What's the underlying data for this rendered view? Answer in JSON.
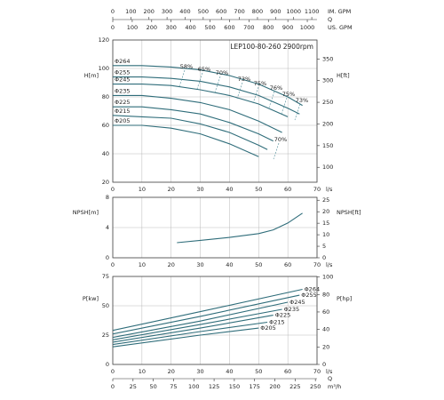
{
  "chart_data": [
    {
      "type": "line",
      "title": "LEP100-80-260 2900rpm",
      "ylabel": "H[m]",
      "y2label": "H[ft]",
      "xlabel": "l/s",
      "xlim": [
        0,
        70
      ],
      "xticks": [
        0,
        10,
        20,
        30,
        40,
        50,
        60,
        70
      ],
      "ylim": [
        20,
        120
      ],
      "yticks": [
        20,
        40,
        60,
        80,
        100,
        120
      ],
      "y2lim": [
        65.6,
        393.7
      ],
      "y2ticks": [
        100,
        150,
        200,
        250,
        300,
        350
      ],
      "grid": true,
      "top_axis_title": "Q",
      "top_axes": [
        {
          "label": "IM. GPM",
          "xlim": [
            0,
            1129
          ],
          "xticks": [
            0,
            100,
            200,
            300,
            400,
            500,
            600,
            700,
            800,
            900,
            1000,
            1100
          ]
        },
        {
          "label": "US. GPM",
          "xlim": [
            0,
            1050
          ],
          "xticks": [
            0,
            100,
            200,
            300,
            400,
            500,
            600,
            700,
            800,
            900,
            1000
          ]
        }
      ],
      "annotations": [
        "58%",
        "65%",
        "70%",
        "73%",
        "75%",
        "76%",
        "75%",
        "73%",
        "70%"
      ],
      "series": [
        {
          "name": "Φ264",
          "color": "#2f6d7a",
          "x": [
            0,
            10,
            20,
            30,
            40,
            50,
            60,
            65
          ],
          "values": [
            102,
            102,
            101,
            99,
            95,
            89,
            80,
            74
          ]
        },
        {
          "name": "Φ255",
          "color": "#2f6d7a",
          "x": [
            0,
            10,
            20,
            30,
            40,
            50,
            60,
            64
          ],
          "values": [
            94,
            94,
            93,
            91,
            87,
            81,
            72,
            68
          ]
        },
        {
          "name": "Φ245",
          "color": "#2f6d7a",
          "x": [
            0,
            10,
            20,
            30,
            40,
            50,
            60
          ],
          "values": [
            89,
            89,
            88,
            85,
            81,
            75,
            66
          ]
        },
        {
          "name": "Φ235",
          "color": "#2f6d7a",
          "x": [
            0,
            10,
            20,
            30,
            40,
            50,
            58
          ],
          "values": [
            81,
            81,
            79,
            76,
            71,
            63,
            55
          ]
        },
        {
          "name": "Φ225",
          "color": "#2f6d7a",
          "x": [
            0,
            10,
            20,
            30,
            40,
            50,
            55
          ],
          "values": [
            73,
            73,
            71,
            68,
            62,
            54,
            49
          ]
        },
        {
          "name": "Φ215",
          "color": "#2f6d7a",
          "x": [
            0,
            10,
            20,
            30,
            40,
            50,
            53
          ],
          "values": [
            67,
            66,
            65,
            61,
            55,
            46,
            43
          ]
        },
        {
          "name": "Φ205",
          "color": "#2f6d7a",
          "x": [
            0,
            10,
            20,
            30,
            40,
            50
          ],
          "values": [
            60,
            60,
            58,
            54,
            47,
            38
          ]
        }
      ]
    },
    {
      "type": "line",
      "ylabel": "NPSH[m]",
      "y2label": "NPSH[ft]",
      "xlabel": "l/s",
      "xlim": [
        0,
        70
      ],
      "xticks": [
        0,
        10,
        20,
        30,
        40,
        50,
        60,
        70
      ],
      "ylim": [
        0,
        8
      ],
      "yticks": [
        0,
        4,
        8
      ],
      "y2lim": [
        0,
        26.25
      ],
      "y2ticks": [
        0,
        5,
        10,
        15,
        20,
        25
      ],
      "grid": true,
      "series": [
        {
          "color": "#2f6d7a",
          "x": [
            22,
            30,
            40,
            50,
            55,
            60,
            65
          ],
          "values": [
            2.0,
            2.3,
            2.7,
            3.2,
            3.7,
            4.6,
            5.9
          ]
        }
      ]
    },
    {
      "type": "line",
      "ylabel": "P[kw]",
      "y2label": "P[hp]",
      "xlabel": "l/s",
      "xlim": [
        0,
        70
      ],
      "xticks": [
        0,
        10,
        20,
        30,
        40,
        50,
        60,
        70
      ],
      "ylim": [
        0,
        75
      ],
      "yticks": [
        0,
        25,
        50,
        75
      ],
      "y2lim": [
        0,
        100.6
      ],
      "y2ticks": [
        0,
        20,
        40,
        60,
        80,
        100
      ],
      "grid": true,
      "bottom_axis_title": "Q",
      "bottom_axes": [
        {
          "label": "m³/h",
          "xlim": [
            0,
            252
          ],
          "xticks": [
            0,
            25,
            50,
            75,
            100,
            125,
            150,
            175,
            200,
            225,
            250
          ]
        }
      ],
      "series": [
        {
          "name": "Φ264",
          "color": "#2f6d7a",
          "x": [
            0,
            30,
            65
          ],
          "values": [
            29,
            45,
            64
          ]
        },
        {
          "name": "Φ255",
          "color": "#2f6d7a",
          "x": [
            0,
            30,
            64
          ],
          "values": [
            26,
            41,
            59
          ]
        },
        {
          "name": "Φ245",
          "color": "#2f6d7a",
          "x": [
            0,
            30,
            60
          ],
          "values": [
            23,
            37,
            53
          ]
        },
        {
          "name": "Φ235",
          "color": "#2f6d7a",
          "x": [
            0,
            30,
            58
          ],
          "values": [
            21,
            34,
            47
          ]
        },
        {
          "name": "Φ225",
          "color": "#2f6d7a",
          "x": [
            0,
            30,
            55
          ],
          "values": [
            19,
            31,
            42
          ]
        },
        {
          "name": "Φ215",
          "color": "#2f6d7a",
          "x": [
            0,
            30,
            53
          ],
          "values": [
            17,
            28,
            36
          ]
        },
        {
          "name": "Φ205",
          "color": "#2f6d7a",
          "x": [
            0,
            30,
            50
          ],
          "values": [
            15,
            25,
            31
          ]
        }
      ]
    }
  ]
}
